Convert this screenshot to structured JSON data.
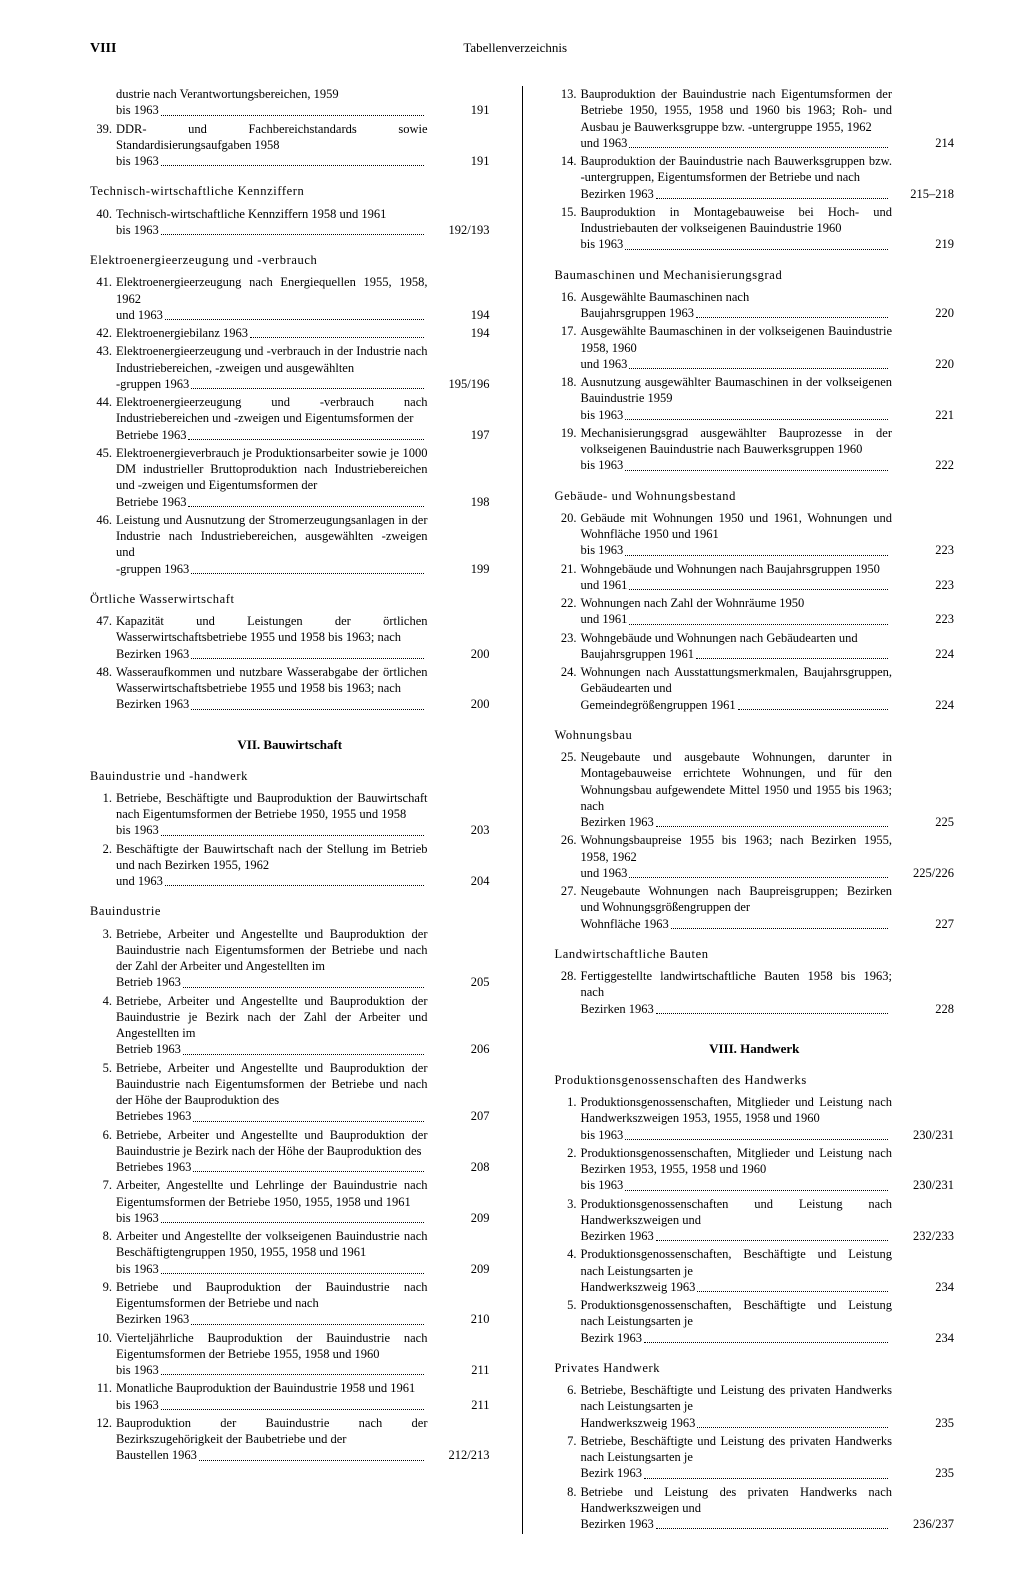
{
  "typography": {
    "body_font": "Georgia, Times New Roman, serif",
    "body_size_pt": 9,
    "heading_size_pt": 10,
    "text_color": "#000000",
    "bg_color": "#ffffff"
  },
  "page_label": "VIII",
  "header_title": "Tabellenverzeichnis",
  "left": [
    {
      "type": "entry",
      "num": "",
      "text": "dustrie nach Verantwortungsbereichen, 1959 bis 1963",
      "page": "191"
    },
    {
      "type": "entry",
      "num": "39.",
      "text": "DDR- und Fachbereichstandards sowie Standardisierungsaufgaben 1958 bis 1963",
      "page": "191"
    },
    {
      "type": "sub",
      "text": "Technisch-wirtschaftliche Kennziffern"
    },
    {
      "type": "entry",
      "num": "40.",
      "text": "Technisch-wirtschaftliche Kennziffern 1958 und 1961 bis 1963",
      "page": "192/193"
    },
    {
      "type": "sub",
      "text": "Elektroenergieerzeugung und -verbrauch"
    },
    {
      "type": "entry",
      "num": "41.",
      "text": "Elektroenergieerzeugung nach Energiequellen 1955, 1958, 1962 und 1963",
      "page": "194"
    },
    {
      "type": "entry",
      "num": "42.",
      "text": "Elektroenergiebilanz 1963",
      "page": "194"
    },
    {
      "type": "entry",
      "num": "43.",
      "text": "Elektroenergieerzeugung und -verbrauch in der Industrie nach Industriebereichen, -zweigen und ausgewählten -gruppen 1963",
      "page": "195/196"
    },
    {
      "type": "entry",
      "num": "44.",
      "text": "Elektroenergieerzeugung und -verbrauch nach Industriebereichen und -zweigen und Eigentumsformen der Betriebe 1963",
      "page": "197"
    },
    {
      "type": "entry",
      "num": "45.",
      "text": "Elektroenergieverbrauch je Produktionsarbeiter sowie je 1000 DM industrieller Bruttoproduktion nach Industriebereichen und -zweigen und Eigentumsformen der Betriebe 1963",
      "page": "198"
    },
    {
      "type": "entry",
      "num": "46.",
      "text": "Leistung und Ausnutzung der Stromerzeugungsanlagen in der Industrie nach Industriebereichen, ausgewählten -zweigen und -gruppen 1963",
      "page": "199"
    },
    {
      "type": "sub",
      "text": "Örtliche Wasserwirtschaft"
    },
    {
      "type": "entry",
      "num": "47.",
      "text": "Kapazität und Leistungen der örtlichen Wasserwirtschaftsbetriebe 1955 und 1958 bis 1963; nach Bezirken 1963",
      "page": "200"
    },
    {
      "type": "entry",
      "num": "48.",
      "text": "Wasseraufkommen und nutzbare Wasserabgabe der örtlichen Wasserwirtschaftsbetriebe 1955 und 1958 bis 1963; nach Bezirken 1963",
      "page": "200"
    },
    {
      "type": "section",
      "text": "VII. Bauwirtschaft"
    },
    {
      "type": "sub",
      "text": "Bauindustrie und -handwerk"
    },
    {
      "type": "entry",
      "num": "1.",
      "text": "Betriebe, Beschäftigte und Bauproduktion der Bauwirtschaft nach Eigentumsformen der Betriebe 1950, 1955 und 1958 bis 1963",
      "page": "203"
    },
    {
      "type": "entry",
      "num": "2.",
      "text": "Beschäftigte der Bauwirtschaft nach der Stellung im Betrieb und nach Bezirken 1955, 1962 und 1963",
      "page": "204"
    },
    {
      "type": "sub",
      "text": "Bauindustrie"
    },
    {
      "type": "entry",
      "num": "3.",
      "text": "Betriebe, Arbeiter und Angestellte und Bauproduktion der Bauindustrie nach Eigentumsformen der Betriebe und nach der Zahl der Arbeiter und Angestellten im Betrieb 1963",
      "page": "205"
    },
    {
      "type": "entry",
      "num": "4.",
      "text": "Betriebe, Arbeiter und Angestellte und Bauproduktion der Bauindustrie je Bezirk nach der Zahl der Arbeiter und Angestellten im Betrieb 1963",
      "page": "206"
    },
    {
      "type": "entry",
      "num": "5.",
      "text": "Betriebe, Arbeiter und Angestellte und Bauproduktion der Bauindustrie nach Eigentumsformen der Betriebe und nach der Höhe der Bauproduktion des Betriebes 1963",
      "page": "207"
    },
    {
      "type": "entry",
      "num": "6.",
      "text": "Betriebe, Arbeiter und Angestellte und Bauproduktion der Bauindustrie je Bezirk nach der Höhe der Bauproduktion des Betriebes 1963",
      "page": "208"
    },
    {
      "type": "entry",
      "num": "7.",
      "text": "Arbeiter, Angestellte und Lehrlinge der Bauindustrie nach Eigentumsformen der Betriebe 1950, 1955, 1958 und 1961 bis 1963",
      "page": "209"
    },
    {
      "type": "entry",
      "num": "8.",
      "text": "Arbeiter und Angestellte der volkseigenen Bauindustrie nach Beschäftigtengruppen 1950, 1955, 1958 und 1961 bis 1963",
      "page": "209"
    },
    {
      "type": "entry",
      "num": "9.",
      "text": "Betriebe und Bauproduktion der Bauindustrie nach Eigentumsformen der Betriebe und nach Bezirken 1963",
      "page": "210"
    },
    {
      "type": "entry",
      "num": "10.",
      "text": "Vierteljährliche Bauproduktion der Bauindustrie nach Eigentumsformen der Betriebe 1955, 1958 und 1960 bis 1963",
      "page": "211"
    },
    {
      "type": "entry",
      "num": "11.",
      "text": "Monatliche Bauproduktion der Bauindustrie 1958 und 1961 bis 1963",
      "page": "211"
    },
    {
      "type": "entry",
      "num": "12.",
      "text": "Bauproduktion der Bauindustrie nach der Bezirkszugehörigkeit der Baubetriebe und der Baustellen 1963",
      "page": "212/213"
    }
  ],
  "right": [
    {
      "type": "entry",
      "num": "13.",
      "text": "Bauproduktion der Bauindustrie nach Eigentumsformen der Betriebe 1950, 1955, 1958 und 1960 bis 1963; Roh- und Ausbau je Bauwerksgruppe bzw. -untergruppe 1955, 1962 und 1963",
      "page": "214"
    },
    {
      "type": "entry",
      "num": "14.",
      "text": "Bauproduktion der Bauindustrie nach Bauwerksgruppen bzw. -untergruppen, Eigentumsformen der Betriebe und nach Bezirken 1963",
      "page": "215–218"
    },
    {
      "type": "entry",
      "num": "15.",
      "text": "Bauproduktion in Montagebauweise bei Hoch- und Industriebauten der volkseigenen Bauindustrie 1960 bis 1963",
      "page": "219"
    },
    {
      "type": "sub",
      "text": "Baumaschinen und Mechanisierungsgrad"
    },
    {
      "type": "entry",
      "num": "16.",
      "text": "Ausgewählte Baumaschinen nach Baujahrsgruppen 1963",
      "page": "220"
    },
    {
      "type": "entry",
      "num": "17.",
      "text": "Ausgewählte Baumaschinen in der volkseigenen Bauindustrie 1958, 1960 und 1963",
      "page": "220"
    },
    {
      "type": "entry",
      "num": "18.",
      "text": "Ausnutzung ausgewählter Baumaschinen in der volkseigenen Bauindustrie 1959 bis 1963",
      "page": "221"
    },
    {
      "type": "entry",
      "num": "19.",
      "text": "Mechanisierungsgrad ausgewählter Bauprozesse in der volkseigenen Bauindustrie nach Bauwerksgruppen 1960 bis 1963",
      "page": "222"
    },
    {
      "type": "sub",
      "text": "Gebäude- und Wohnungsbestand"
    },
    {
      "type": "entry",
      "num": "20.",
      "text": "Gebäude mit Wohnungen 1950 und 1961, Wohnungen und Wohnfläche 1950 und 1961 bis 1963",
      "page": "223"
    },
    {
      "type": "entry",
      "num": "21.",
      "text": "Wohngebäude und Wohnungen nach Baujahrsgruppen 1950 und 1961",
      "page": "223"
    },
    {
      "type": "entry",
      "num": "22.",
      "text": "Wohnungen nach Zahl der Wohnräume 1950 und 1961",
      "page": "223"
    },
    {
      "type": "entry",
      "num": "23.",
      "text": "Wohngebäude und Wohnungen nach Gebäudearten und Baujahrsgruppen 1961",
      "page": "224"
    },
    {
      "type": "entry",
      "num": "24.",
      "text": "Wohnungen nach Ausstattungsmerkmalen, Baujahrsgruppen, Gebäudearten und Gemeindegrößengruppen 1961",
      "page": "224"
    },
    {
      "type": "sub",
      "text": "Wohnungsbau"
    },
    {
      "type": "entry",
      "num": "25.",
      "text": "Neugebaute und ausgebaute Wohnungen, darunter in Montagebauweise errichtete Wohnungen, und für den Wohnungsbau aufgewendete Mittel 1950 und 1955 bis 1963; nach Bezirken 1963",
      "page": "225"
    },
    {
      "type": "entry",
      "num": "26.",
      "text": "Wohnungsbaupreise 1955 bis 1963; nach Bezirken 1955, 1958, 1962 und 1963",
      "page": "225/226"
    },
    {
      "type": "entry",
      "num": "27.",
      "text": "Neugebaute Wohnungen nach Baupreisgruppen; Bezirken und Wohnungsgrößengruppen der Wohnfläche 1963",
      "page": "227"
    },
    {
      "type": "sub",
      "text": "Landwirtschaftliche Bauten"
    },
    {
      "type": "entry",
      "num": "28.",
      "text": "Fertiggestellte landwirtschaftliche Bauten 1958 bis 1963; nach Bezirken 1963",
      "page": "228"
    },
    {
      "type": "section",
      "text": "VIII. Handwerk"
    },
    {
      "type": "sub",
      "text": "Produktionsgenossenschaften des Handwerks"
    },
    {
      "type": "entry",
      "num": "1.",
      "text": "Produktionsgenossenschaften, Mitglieder und Leistung nach Handwerkszweigen 1953, 1955, 1958 und 1960 bis 1963",
      "page": "230/231"
    },
    {
      "type": "entry",
      "num": "2.",
      "text": "Produktionsgenossenschaften, Mitglieder und Leistung nach Bezirken 1953, 1955, 1958 und 1960 bis 1963",
      "page": "230/231"
    },
    {
      "type": "entry",
      "num": "3.",
      "text": "Produktionsgenossenschaften und Leistung nach Handwerkszweigen und Bezirken 1963",
      "page": "232/233"
    },
    {
      "type": "entry",
      "num": "4.",
      "text": "Produktionsgenossenschaften, Beschäftigte und Leistung nach Leistungsarten je Handwerkszweig 1963",
      "page": "234"
    },
    {
      "type": "entry",
      "num": "5.",
      "text": "Produktionsgenossenschaften, Beschäftigte und Leistung nach Leistungsarten je Bezirk 1963",
      "page": "234"
    },
    {
      "type": "sub",
      "text": "Privates Handwerk"
    },
    {
      "type": "entry",
      "num": "6.",
      "text": "Betriebe, Beschäftigte und Leistung des privaten Handwerks nach Leistungsarten je Handwerkszweig 1963",
      "page": "235"
    },
    {
      "type": "entry",
      "num": "7.",
      "text": "Betriebe, Beschäftigte und Leistung des privaten Handwerks nach Leistungsarten je Bezirk 1963",
      "page": "235"
    },
    {
      "type": "entry",
      "num": "8.",
      "text": "Betriebe und Leistung des privaten Handwerks nach Handwerkszweigen und Bezirken 1963",
      "page": "236/237"
    }
  ]
}
